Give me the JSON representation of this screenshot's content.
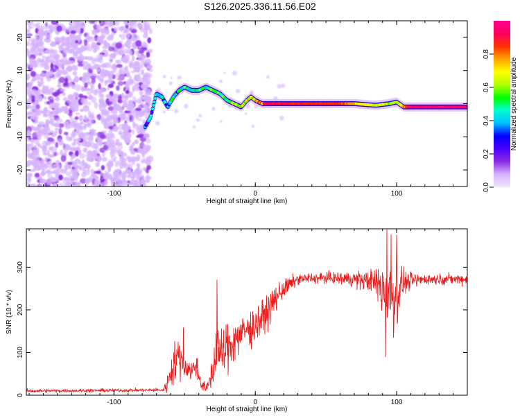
{
  "title": "S126.2025.336.11.56.E02",
  "chart_data": [
    {
      "type": "heatmap",
      "name": "spectrogram",
      "xlabel": "Height of straight line (km)",
      "ylabel": "Frequency (Hz)",
      "xlim": [
        -162,
        150
      ],
      "ylim": [
        -25,
        25
      ],
      "xticks": [
        -100,
        0,
        100
      ],
      "yticks": [
        -20,
        -10,
        0,
        10,
        20
      ],
      "colorbar": {
        "label": "Normalized spectral amplitude",
        "range": [
          0,
          1
        ],
        "ticks": [
          "0.0",
          "0.2",
          "0.4",
          "0.6",
          "0.8"
        ],
        "colors": [
          "#f2e6ff",
          "#d6b3ff",
          "#8a2be2",
          "#4b00ff",
          "#0000ff",
          "#00bfff",
          "#00ffd0",
          "#00ff00",
          "#b0ff00",
          "#ffff00",
          "#ffa500",
          "#ff3000",
          "#ff0060",
          "#ff0090"
        ]
      },
      "noise_region_x": [
        -162,
        -78
      ],
      "trace_points": [
        {
          "x": -78,
          "y": -7
        },
        {
          "x": -74,
          "y": -4
        },
        {
          "x": -70,
          "y": 3
        },
        {
          "x": -66,
          "y": 2
        },
        {
          "x": -62,
          "y": -1
        },
        {
          "x": -58,
          "y": 2
        },
        {
          "x": -54,
          "y": 4
        },
        {
          "x": -50,
          "y": 5
        },
        {
          "x": -45,
          "y": 4
        },
        {
          "x": -40,
          "y": 4
        },
        {
          "x": -35,
          "y": 5
        },
        {
          "x": -30,
          "y": 4
        },
        {
          "x": -25,
          "y": 3
        },
        {
          "x": -20,
          "y": 1
        },
        {
          "x": -15,
          "y": 0
        },
        {
          "x": -10,
          "y": -1
        },
        {
          "x": -6,
          "y": 1
        },
        {
          "x": -3,
          "y": 2
        },
        {
          "x": 0,
          "y": 1
        },
        {
          "x": 5,
          "y": 0
        },
        {
          "x": 15,
          "y": 0
        },
        {
          "x": 30,
          "y": 0
        },
        {
          "x": 50,
          "y": 0
        },
        {
          "x": 70,
          "y": 0
        },
        {
          "x": 85,
          "y": -0.5
        },
        {
          "x": 95,
          "y": 0
        },
        {
          "x": 100,
          "y": 0.5
        },
        {
          "x": 105,
          "y": -1
        },
        {
          "x": 120,
          "y": -1
        },
        {
          "x": 150,
          "y": -1
        }
      ],
      "trace_amplitude": [
        {
          "x": -78,
          "a": 0.35
        },
        {
          "x": -60,
          "a": 0.45
        },
        {
          "x": -40,
          "a": 0.5
        },
        {
          "x": -20,
          "a": 0.55
        },
        {
          "x": 0,
          "a": 0.7
        },
        {
          "x": 10,
          "a": 0.9
        },
        {
          "x": 60,
          "a": 0.85
        },
        {
          "x": 80,
          "a": 0.65
        },
        {
          "x": 100,
          "a": 0.6
        },
        {
          "x": 110,
          "a": 0.95
        },
        {
          "x": 150,
          "a": 0.95
        }
      ]
    },
    {
      "type": "line",
      "name": "snr",
      "xlabel": "Height of straight line (km)",
      "ylabel": "SNR (10 * v/v)",
      "xlim": [
        -162,
        150
      ],
      "ylim": [
        0,
        390
      ],
      "xticks": [
        -100,
        0,
        100
      ],
      "yticks": [
        0,
        100,
        200,
        300
      ],
      "color": "#ee1c1c",
      "envelope": [
        {
          "x": -162,
          "mean": 10,
          "spread": 4
        },
        {
          "x": -65,
          "mean": 12,
          "spread": 4
        },
        {
          "x": -62,
          "mean": 30,
          "spread": 25
        },
        {
          "x": -58,
          "mean": 75,
          "spread": 45
        },
        {
          "x": -54,
          "mean": 90,
          "spread": 40
        },
        {
          "x": -50,
          "mean": 70,
          "spread": 35
        },
        {
          "x": -45,
          "mean": 55,
          "spread": 25
        },
        {
          "x": -42,
          "mean": 70,
          "spread": 25
        },
        {
          "x": -38,
          "mean": 25,
          "spread": 15
        },
        {
          "x": -34,
          "mean": 15,
          "spread": 10
        },
        {
          "x": -30,
          "mean": 60,
          "spread": 50
        },
        {
          "x": -27,
          "mean": 120,
          "spread": 60
        },
        {
          "x": -24,
          "mean": 90,
          "spread": 55
        },
        {
          "x": -20,
          "mean": 110,
          "spread": 60
        },
        {
          "x": -15,
          "mean": 130,
          "spread": 50
        },
        {
          "x": -10,
          "mean": 145,
          "spread": 45
        },
        {
          "x": -5,
          "mean": 155,
          "spread": 40
        },
        {
          "x": 0,
          "mean": 165,
          "spread": 45
        },
        {
          "x": 5,
          "mean": 180,
          "spread": 40
        },
        {
          "x": 10,
          "mean": 200,
          "spread": 35
        },
        {
          "x": 15,
          "mean": 230,
          "spread": 30
        },
        {
          "x": 20,
          "mean": 250,
          "spread": 22
        },
        {
          "x": 25,
          "mean": 260,
          "spread": 18
        },
        {
          "x": 30,
          "mean": 272,
          "spread": 12
        },
        {
          "x": 50,
          "mean": 275,
          "spread": 12
        },
        {
          "x": 70,
          "mean": 272,
          "spread": 18
        },
        {
          "x": 85,
          "mean": 265,
          "spread": 30
        },
        {
          "x": 90,
          "mean": 250,
          "spread": 70
        },
        {
          "x": 95,
          "mean": 240,
          "spread": 110
        },
        {
          "x": 100,
          "mean": 240,
          "spread": 80
        },
        {
          "x": 105,
          "mean": 265,
          "spread": 25
        },
        {
          "x": 120,
          "mean": 272,
          "spread": 12
        },
        {
          "x": 150,
          "mean": 272,
          "spread": 12
        }
      ],
      "spikes": [
        {
          "x": -51,
          "y": 158
        },
        {
          "x": -27,
          "y": 270
        },
        {
          "x": 92,
          "y": 90
        },
        {
          "x": 93,
          "y": 388
        },
        {
          "x": 96,
          "y": 376
        },
        {
          "x": 98,
          "y": 160
        },
        {
          "x": 100,
          "y": 375
        }
      ]
    }
  ]
}
